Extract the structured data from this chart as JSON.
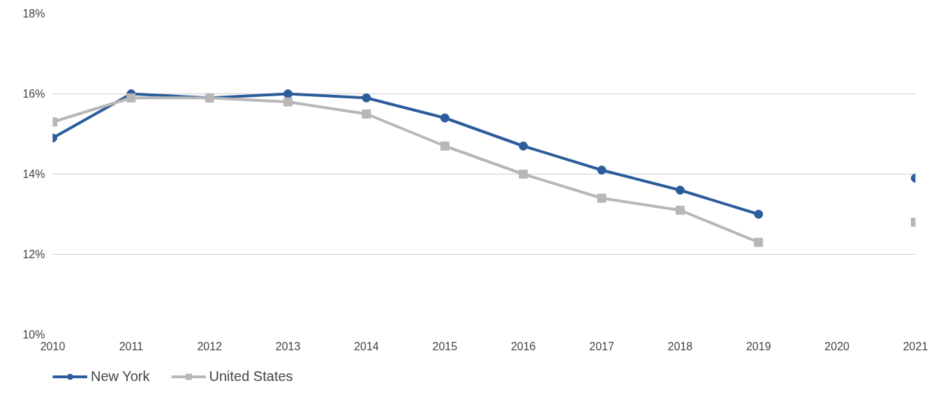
{
  "chart_data": {
    "type": "line",
    "categories": [
      "2010",
      "2011",
      "2012",
      "2013",
      "2014",
      "2015",
      "2016",
      "2017",
      "2018",
      "2019",
      "2020",
      "2021"
    ],
    "series": [
      {
        "name": "New York",
        "color": "#2b5c9b",
        "marker": "circle",
        "values": [
          14.9,
          16.0,
          15.9,
          16.0,
          15.9,
          15.4,
          14.7,
          14.1,
          13.6,
          13.0,
          null,
          13.9
        ]
      },
      {
        "name": "United States",
        "color": "#b7b7b7",
        "marker": "square",
        "values": [
          15.3,
          15.9,
          15.9,
          15.8,
          15.5,
          14.7,
          14.0,
          13.4,
          13.1,
          12.3,
          null,
          12.8
        ]
      }
    ],
    "ylim": [
      10,
      18
    ],
    "yticks": [
      {
        "value": 10,
        "label": "10%"
      },
      {
        "value": 12,
        "label": "12%"
      },
      {
        "value": 14,
        "label": "14%"
      },
      {
        "value": 16,
        "label": "16%"
      },
      {
        "value": 18,
        "label": "18%"
      }
    ],
    "grid": "y",
    "legend": "bottom left",
    "line_style": "solid"
  }
}
